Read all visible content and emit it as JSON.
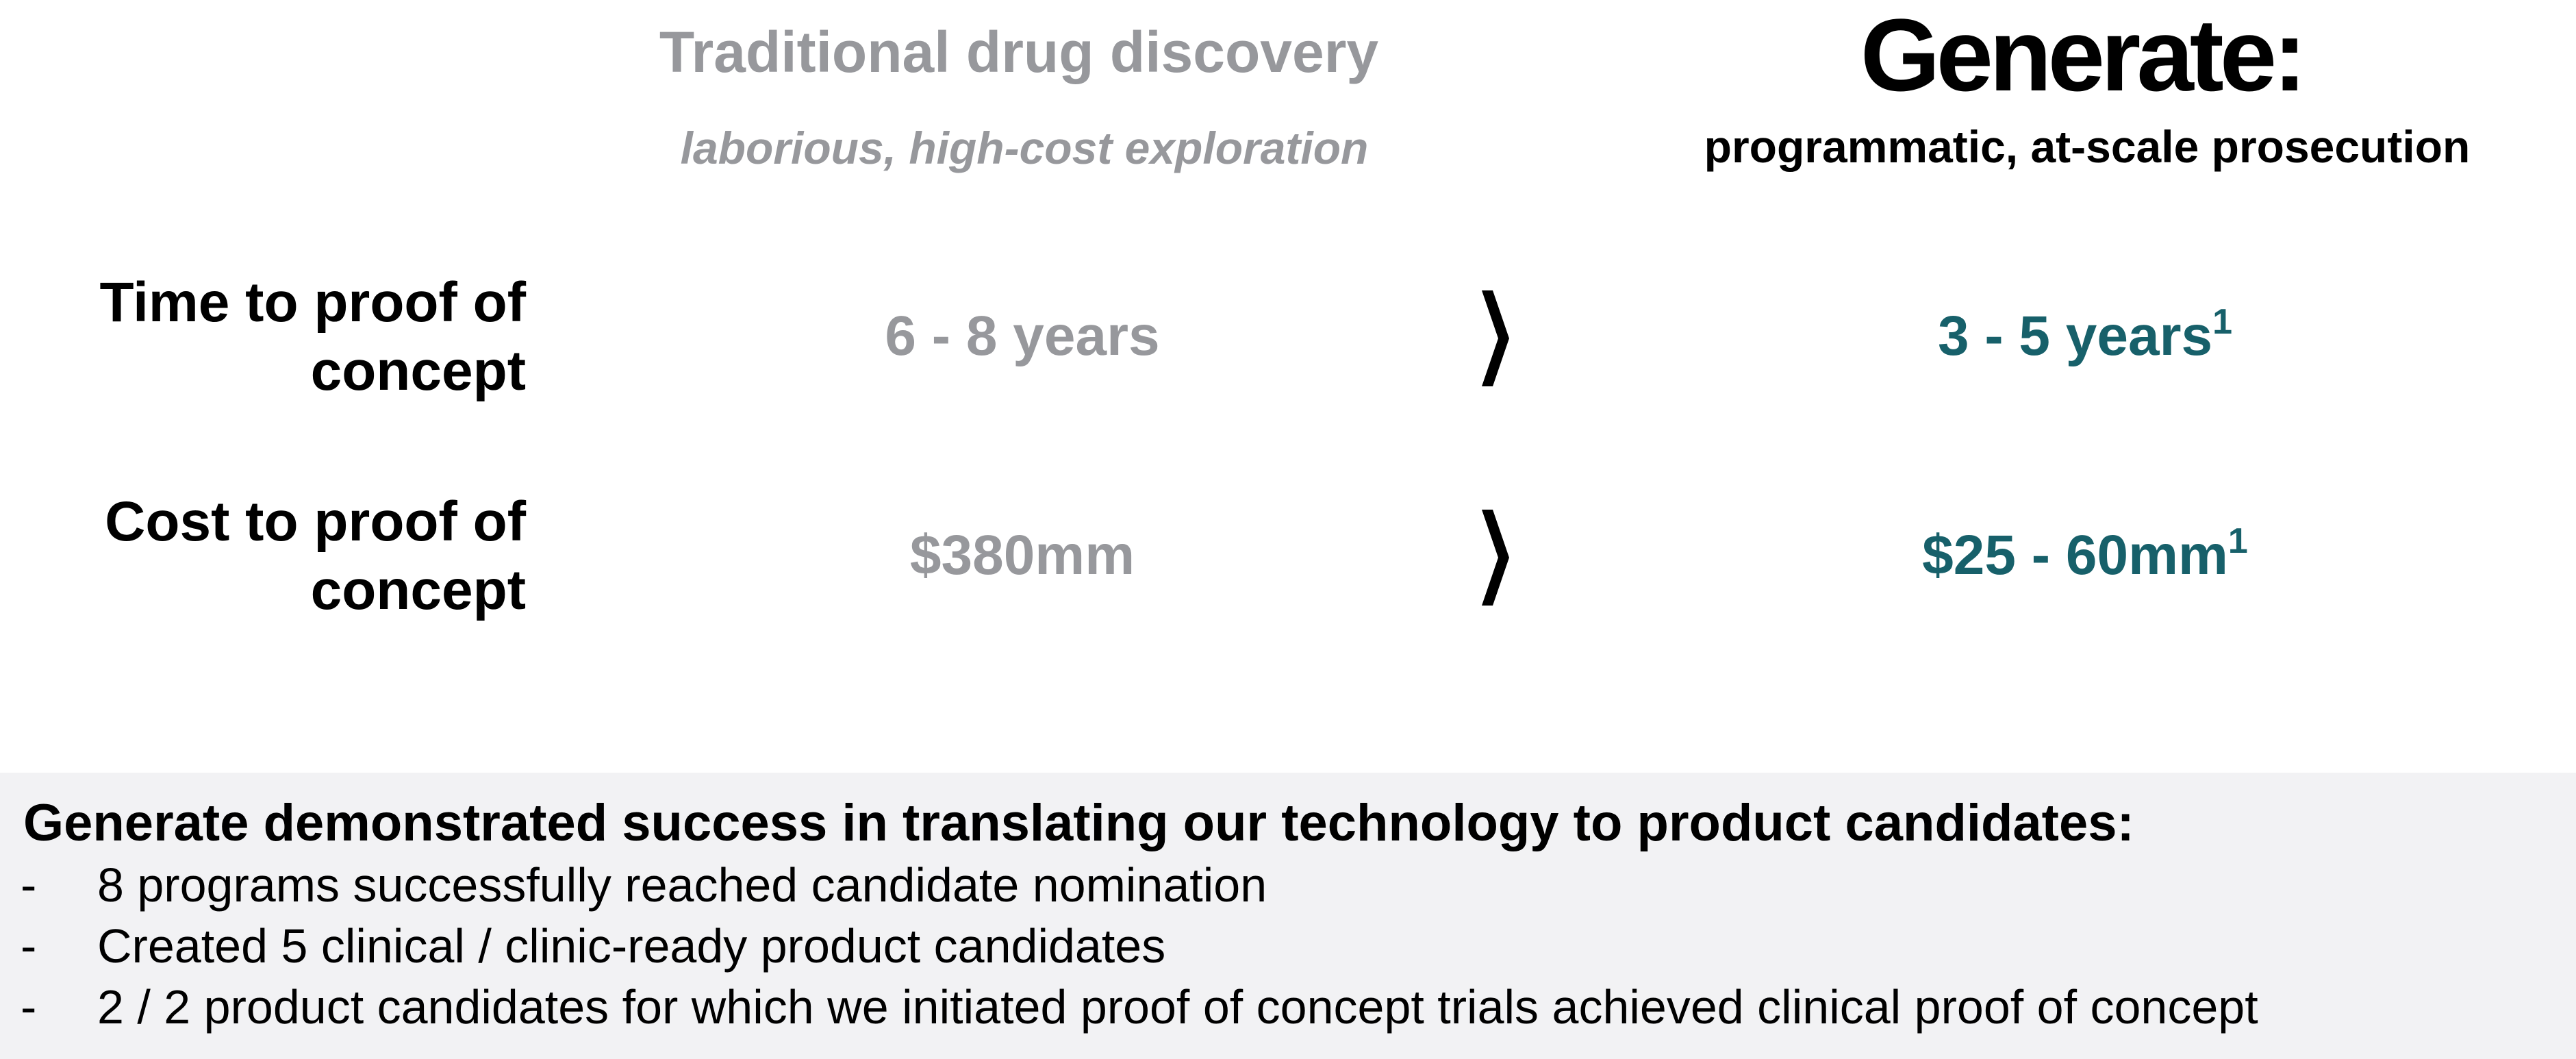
{
  "header": {
    "traditional": {
      "title": "Traditional drug discovery",
      "subtitle": "laborious, high-cost exploration"
    },
    "generate": {
      "title": "Generate:",
      "subtitle": "programmatic, at-scale prosecution"
    }
  },
  "rows": [
    {
      "label_line1": "Time to proof of",
      "label_line2": "concept",
      "traditional": "6 - 8 years",
      "generate": "3 - 5 years",
      "generate_footnote": "1"
    },
    {
      "label_line1": "Cost to proof of",
      "label_line2": "concept",
      "traditional": "$380mm",
      "generate": "$25 - 60mm",
      "generate_footnote": "1"
    }
  ],
  "arrow_icon": "chevron-right-icon",
  "colors": {
    "traditional": "#97989c",
    "generate": "#17606a",
    "panel": "#f2f2f4"
  },
  "summary": {
    "heading": "Generate demonstrated success in translating our technology to product candidates:",
    "bullet_marker": "-",
    "bullets": [
      "8 programs successfully reached candidate nomination",
      "Created 5 clinical / clinic-ready product candidates",
      "2 / 2 product candidates for which we initiated proof of concept trials achieved clinical proof of concept"
    ]
  }
}
